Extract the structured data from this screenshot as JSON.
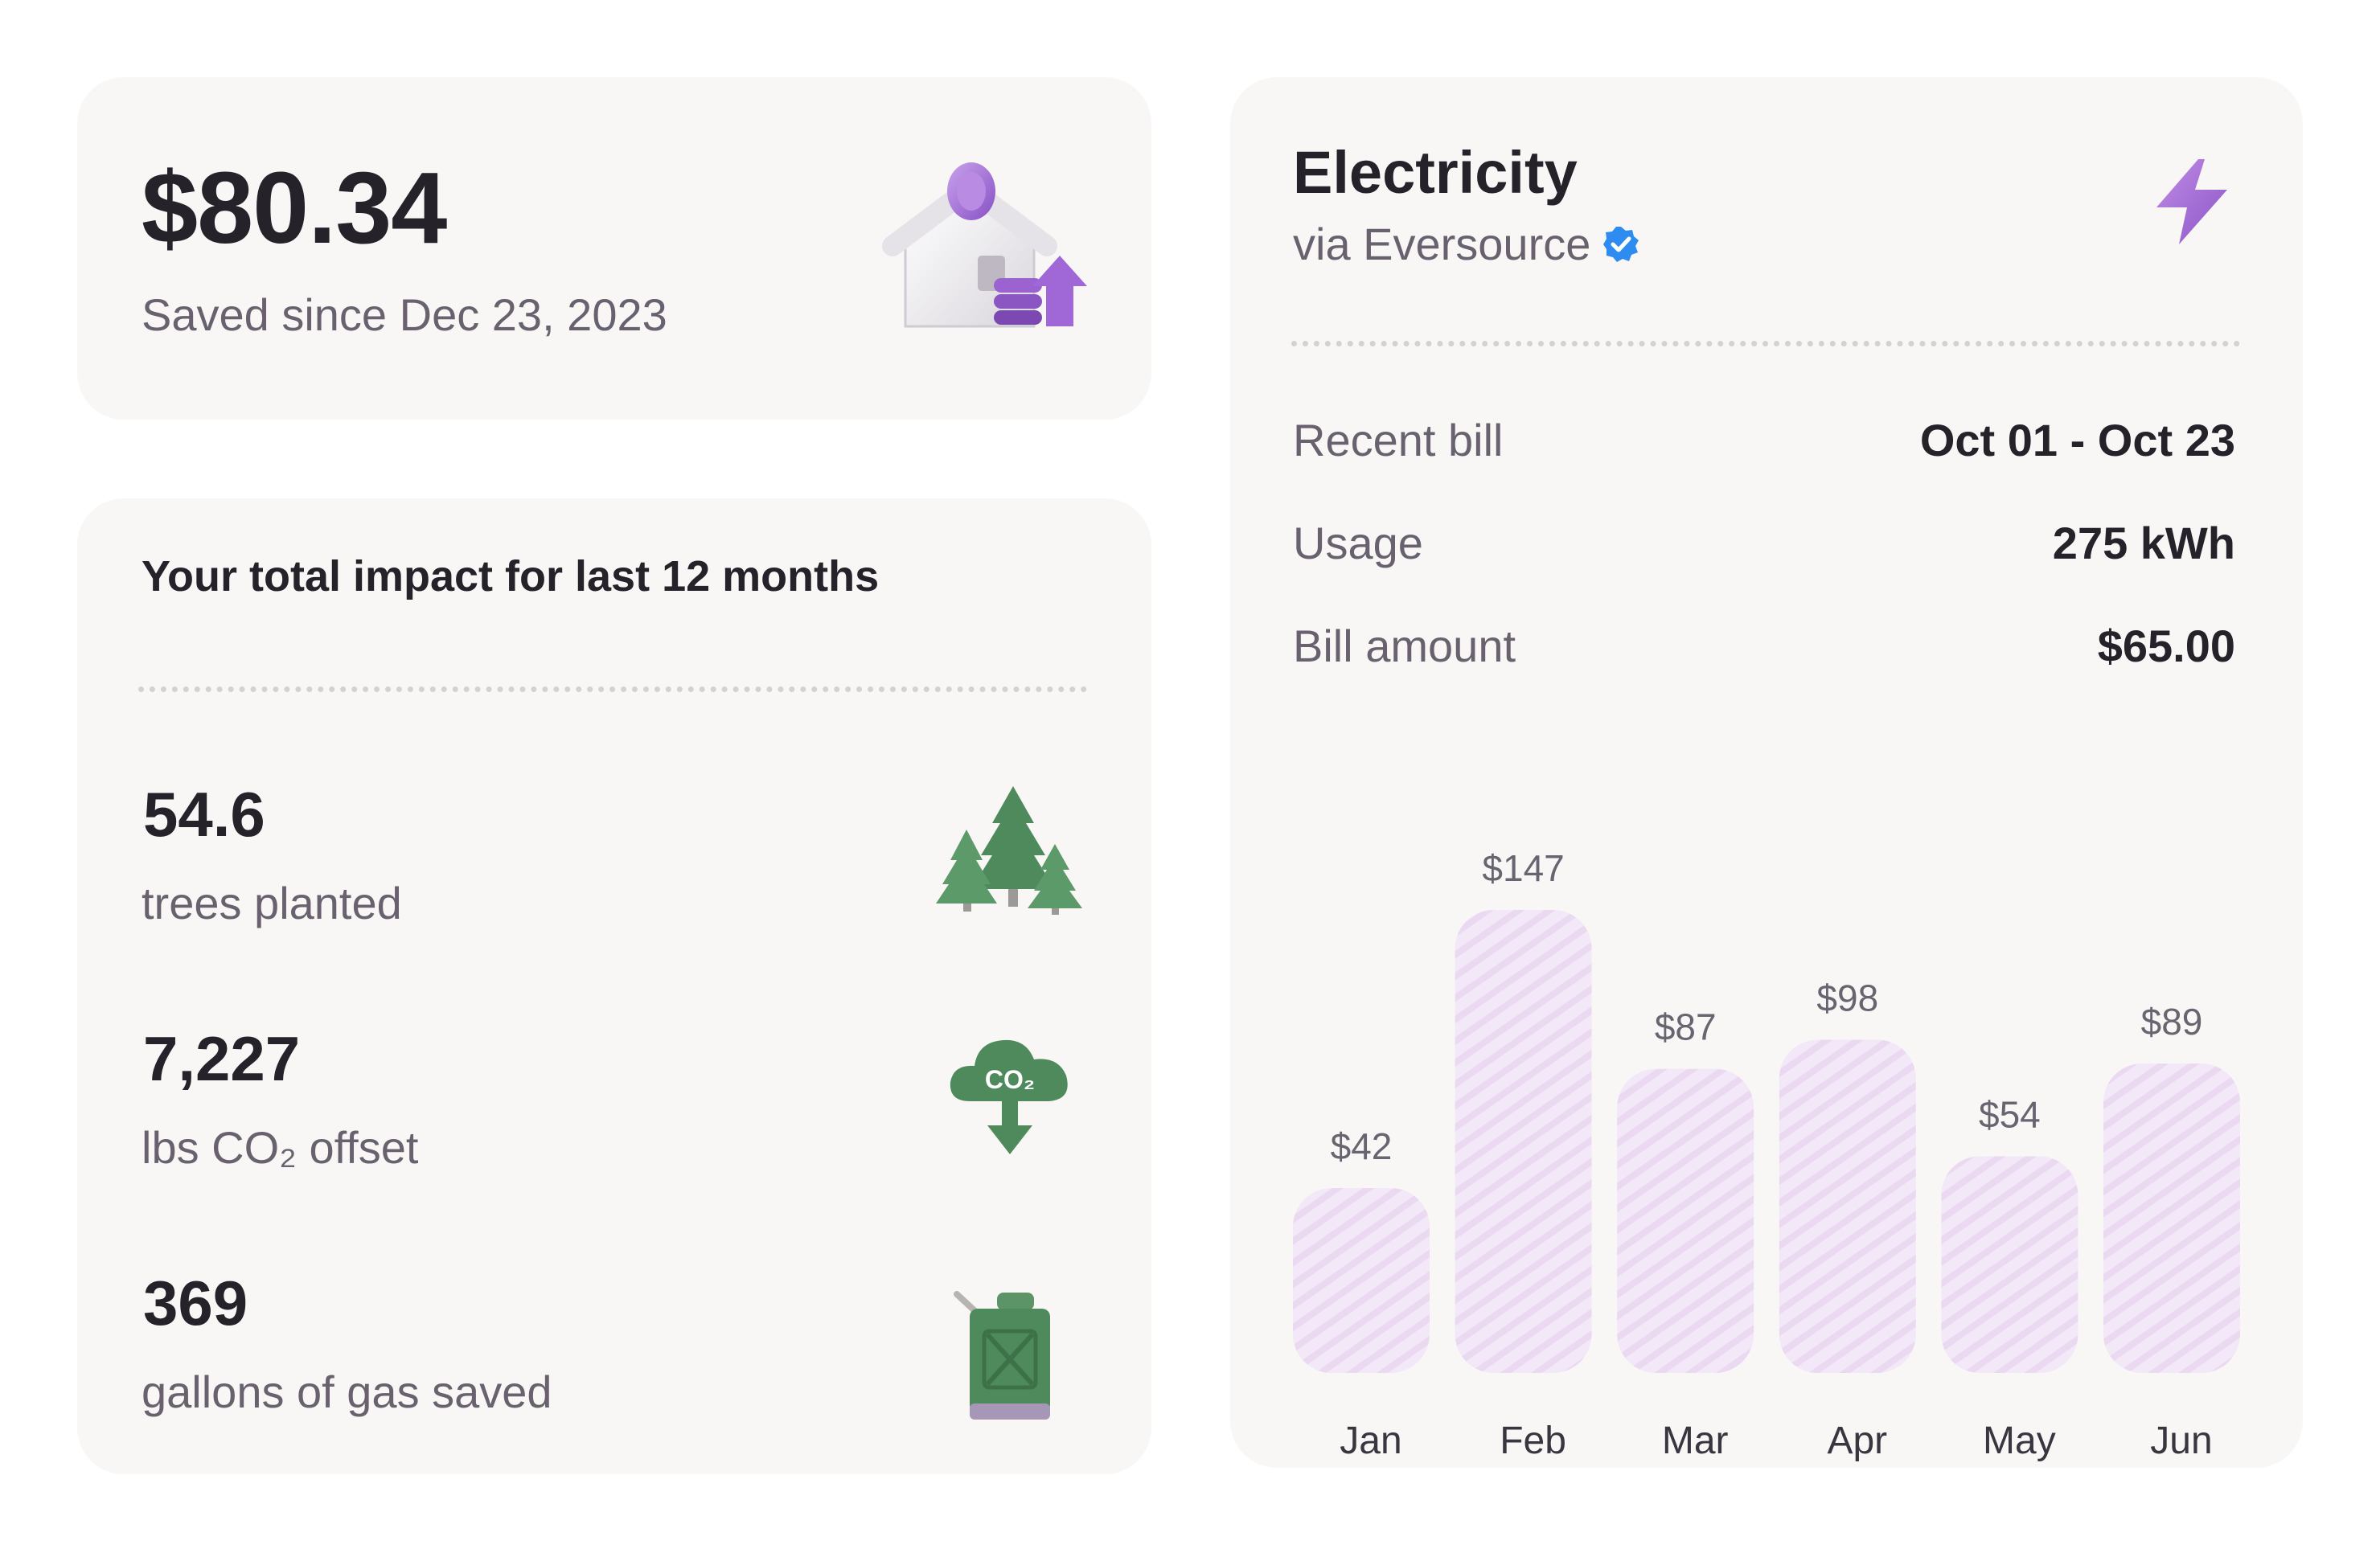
{
  "savings": {
    "amount": "$80.34",
    "since": "Saved since Dec 23, 2023",
    "icon": "house-savings-icon"
  },
  "impact": {
    "title": "Your total impact for last 12 months",
    "stats": [
      {
        "value": "54.6",
        "label": "trees planted",
        "icon": "trees-icon"
      },
      {
        "value": "7,227",
        "label": "lbs CO₂ offset",
        "icon": "co2-cloud-icon"
      },
      {
        "value": "369",
        "label": "gallons of gas saved",
        "icon": "gas-can-icon"
      }
    ]
  },
  "electricity": {
    "title": "Electricity",
    "provider": "via Eversource",
    "verified_icon": "verified-badge-icon",
    "bolt_icon": "lightning-bolt-icon",
    "details": [
      {
        "label": "Recent bill",
        "value": "Oct 01 - Oct 23"
      },
      {
        "label": "Usage",
        "value": "275 kWh"
      },
      {
        "label": "Bill amount",
        "value": "$65.00"
      }
    ]
  },
  "colors": {
    "accent": "#9b6bd0",
    "bar_fill": "#f1e4f5",
    "card_bg": "#f8f7f6",
    "icon_green": "#4f8a5c"
  },
  "chart_data": {
    "type": "bar",
    "categories": [
      "Jan",
      "Feb",
      "Mar",
      "Apr",
      "May",
      "Jun"
    ],
    "values": [
      42,
      147,
      87,
      98,
      54,
      89
    ],
    "value_labels": [
      "$42",
      "$147",
      "$87",
      "$98",
      "$54",
      "$89"
    ],
    "title": "",
    "xlabel": "",
    "ylabel": "",
    "grid": false
  }
}
